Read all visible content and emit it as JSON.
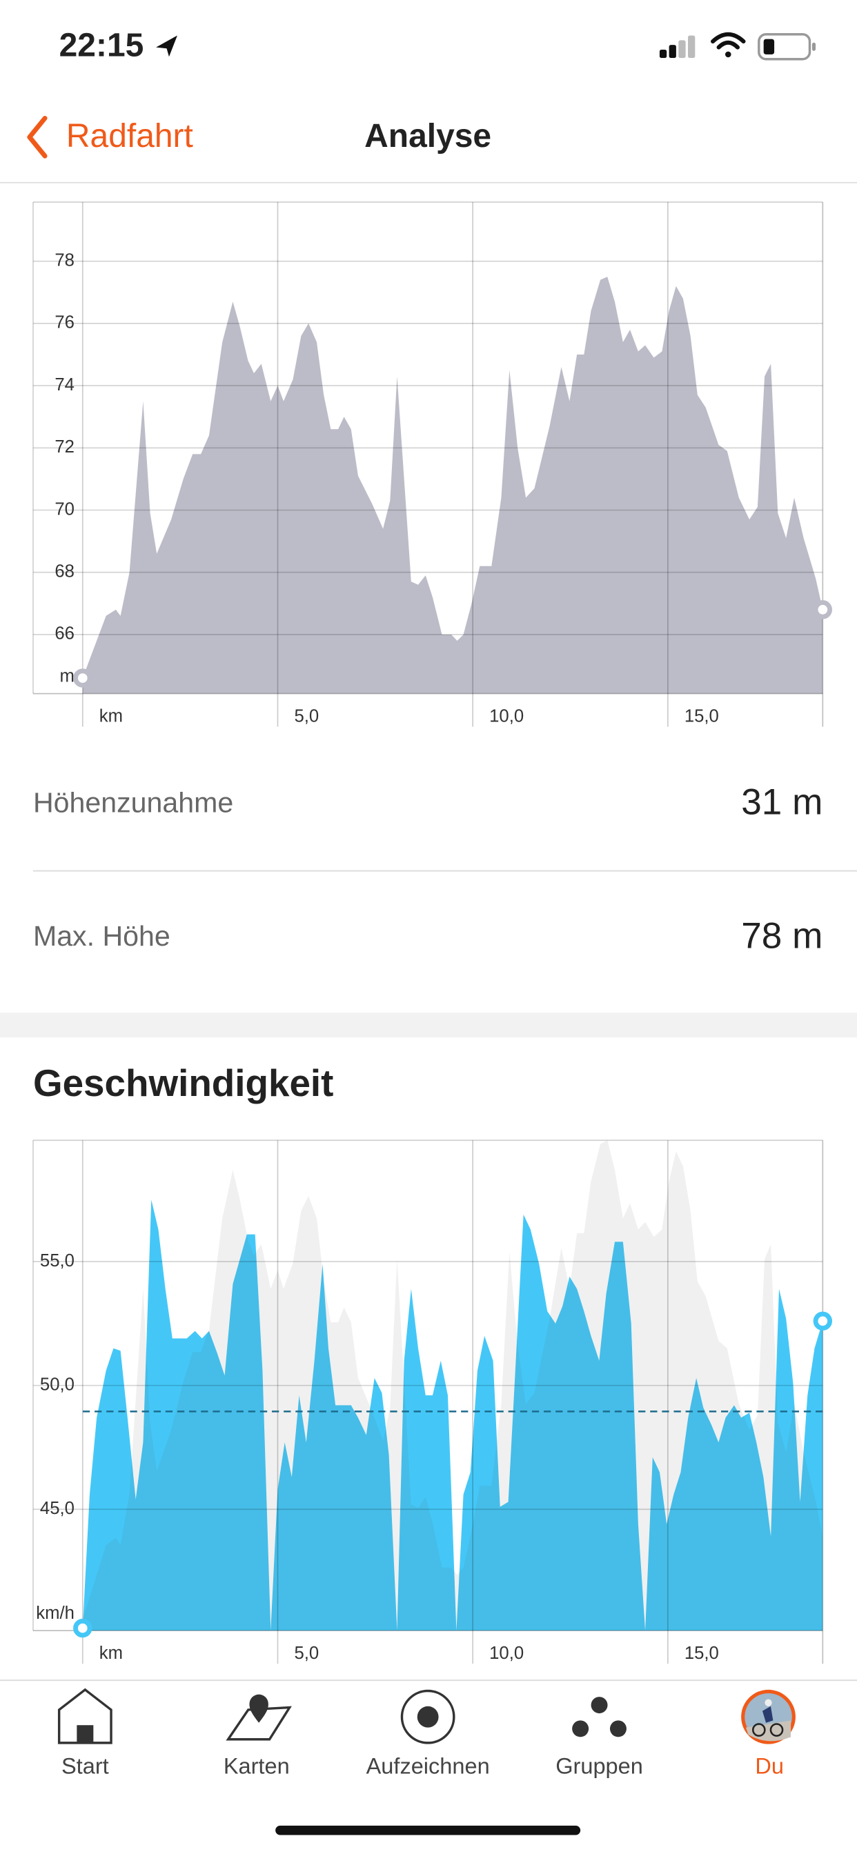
{
  "status_bar": {
    "time": "22:15"
  },
  "nav": {
    "back": "Radfahrt",
    "title": "Analyse"
  },
  "stats": [
    {
      "label": "Höhenzunahme",
      "value": "31 m"
    },
    {
      "label": "Max. Höhe",
      "value": "78 m"
    }
  ],
  "speed_section": {
    "title": "Geschwindigkeit"
  },
  "tabs": [
    "Start",
    "Karten",
    "Aufzeichnen",
    "Gruppen",
    "Du"
  ],
  "chart_data": [
    {
      "type": "area",
      "y_unit": "m",
      "color": "#bcbcc8",
      "xlim": [
        -1.27,
        18.97
      ],
      "ylim": [
        64.1,
        79.9
      ],
      "xticks": [
        {
          "value": 0,
          "label": "km"
        },
        {
          "value": 5,
          "label": "5,0"
        },
        {
          "value": 10,
          "label": "10,0"
        },
        {
          "value": 15,
          "label": "15,0"
        }
      ],
      "yticks": [
        66,
        68,
        70,
        72,
        74,
        76,
        78
      ],
      "grid": true,
      "x": [
        0,
        0.15,
        0.6,
        0.85,
        0.97,
        1.2,
        1.55,
        1.73,
        1.9,
        2.27,
        2.58,
        2.82,
        3.03,
        3.24,
        3.58,
        3.85,
        4.03,
        4.24,
        4.39,
        4.58,
        4.82,
        5.0,
        5.15,
        5.39,
        5.6,
        5.79,
        6.0,
        6.18,
        6.36,
        6.55,
        6.7,
        6.88,
        7.06,
        7.42,
        7.7,
        7.88,
        8.06,
        8.42,
        8.6,
        8.79,
        8.97,
        9.21,
        9.45,
        9.6,
        9.76,
        9.97,
        10.18,
        10.48,
        10.73,
        10.94,
        11.15,
        11.36,
        11.58,
        11.97,
        12.27,
        12.48,
        12.67,
        12.85,
        13.03,
        13.27,
        13.45,
        13.64,
        13.85,
        14.03,
        14.24,
        14.42,
        14.64,
        14.85,
        15.03,
        15.21,
        15.39,
        15.58,
        15.76,
        15.97,
        16.3,
        16.52,
        16.82,
        17.09,
        17.3,
        17.48,
        17.64,
        17.82,
        18.03,
        18.24,
        18.48,
        18.79,
        18.97
      ],
      "values": [
        64.6,
        65.1,
        66.6,
        66.8,
        66.6,
        68,
        73.5,
        69.9,
        68.6,
        69.7,
        71,
        71.8,
        71.8,
        72.4,
        75.4,
        76.7,
        75.9,
        74.8,
        74.4,
        74.7,
        73.5,
        74,
        73.5,
        74.2,
        75.6,
        76,
        75.4,
        73.7,
        72.6,
        72.6,
        73,
        72.6,
        71.1,
        70.2,
        69.4,
        70.3,
        74.3,
        67.7,
        67.6,
        67.9,
        67.2,
        66,
        66,
        65.8,
        66,
        67,
        68.2,
        68.2,
        70.4,
        74.5,
        72,
        70.4,
        70.7,
        72.7,
        74.6,
        73.5,
        75,
        75,
        76.4,
        77.4,
        77.5,
        76.7,
        75.4,
        75.8,
        75.1,
        75.3,
        74.9,
        75.1,
        76.4,
        77.2,
        76.8,
        75.6,
        73.7,
        73.3,
        72.1,
        71.9,
        70.4,
        69.7,
        70.1,
        74.3,
        74.7,
        69.9,
        69.1,
        70.4,
        69.1,
        67.8,
        66.8
      ]
    },
    {
      "type": "area",
      "y_unit": "km/h",
      "color": "#44c7f7",
      "xlim": [
        -1.27,
        18.97
      ],
      "ylim": [
        40.1,
        59.9
      ],
      "y2lim": [
        64.3,
        77.5
      ],
      "xticks": [
        {
          "value": 0,
          "label": "km"
        },
        {
          "value": 5,
          "label": "5,0"
        },
        {
          "value": 10,
          "label": "10,0"
        },
        {
          "value": 15,
          "label": "15,0"
        }
      ],
      "yticks": [
        {
          "value": 45,
          "label": "45,0"
        },
        {
          "value": 50,
          "label": "50,0"
        },
        {
          "value": 55,
          "label": "55,0"
        }
      ],
      "grid": true,
      "average": 48.95,
      "x": [
        0,
        0.18,
        0.36,
        0.6,
        0.79,
        0.97,
        1.15,
        1.36,
        1.55,
        1.76,
        1.94,
        2.12,
        2.3,
        2.48,
        2.67,
        2.88,
        3.06,
        3.24,
        3.45,
        3.64,
        3.85,
        4.03,
        4.21,
        4.42,
        4.61,
        4.82,
        5.0,
        5.18,
        5.36,
        5.55,
        5.73,
        5.94,
        6.15,
        6.3,
        6.48,
        6.67,
        6.88,
        7.06,
        7.27,
        7.48,
        7.67,
        7.85,
        8.06,
        8.24,
        8.42,
        8.6,
        8.79,
        8.97,
        9.18,
        9.36,
        9.58,
        9.76,
        9.94,
        10.12,
        10.3,
        10.52,
        10.7,
        10.91,
        11.09,
        11.3,
        11.48,
        11.7,
        11.91,
        12.12,
        12.3,
        12.48,
        12.67,
        12.85,
        13.03,
        13.24,
        13.42,
        13.64,
        13.85,
        14.06,
        14.24,
        14.42,
        14.61,
        14.79,
        14.97,
        15.15,
        15.33,
        15.52,
        15.73,
        15.91,
        16.12,
        16.3,
        16.48,
        16.7,
        16.88,
        17.09,
        17.27,
        17.45,
        17.64,
        17.85,
        18.03,
        18.21,
        18.39,
        18.58,
        18.76,
        18.97
      ],
      "values": [
        40.2,
        45.6,
        48.7,
        50.6,
        51.5,
        51.4,
        48.7,
        45.4,
        47.7,
        57.5,
        56.3,
        53.9,
        51.9,
        51.9,
        51.9,
        52.2,
        51.9,
        52.2,
        51.3,
        50.4,
        54.1,
        55.1,
        56.1,
        56.1,
        50.6,
        40.1,
        45.8,
        47.7,
        46.3,
        49.6,
        47.7,
        51,
        54.9,
        51.5,
        49.2,
        49.2,
        49.2,
        48.7,
        48,
        50.3,
        49.7,
        47.2,
        40.1,
        51,
        53.9,
        51.5,
        49.6,
        49.6,
        51,
        49.6,
        40.1,
        45.6,
        46.5,
        50.6,
        52,
        51,
        45.1,
        45.3,
        50.6,
        56.9,
        56.3,
        54.9,
        53,
        52.5,
        53.2,
        54.4,
        53.9,
        53,
        52,
        51,
        53.7,
        55.8,
        55.8,
        52.5,
        44.4,
        40.1,
        47.1,
        46.5,
        44.4,
        45.6,
        46.5,
        48.7,
        50.3,
        49.1,
        48.4,
        47.7,
        48.7,
        49.2,
        48.7,
        48.9,
        47.7,
        46.3,
        43.9,
        53.9,
        52.7,
        50.1,
        45.3,
        49.6,
        51.5,
        52.6
      ]
    }
  ]
}
